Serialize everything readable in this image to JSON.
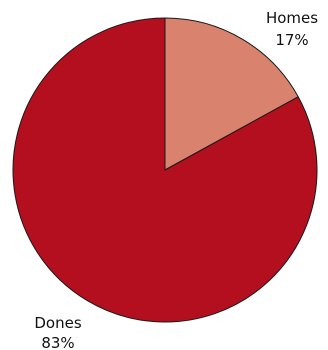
{
  "chart_data": {
    "type": "pie",
    "title": "",
    "slices": [
      {
        "label": "Homes",
        "value": 17,
        "value_label": "17%",
        "color": "#d9836f"
      },
      {
        "label": "Dones",
        "value": 83,
        "value_label": "83%",
        "color": "#b30f1f"
      }
    ],
    "start_angle_deg": 0,
    "direction": "clockwise",
    "legend": "none",
    "labels_outside": true
  }
}
